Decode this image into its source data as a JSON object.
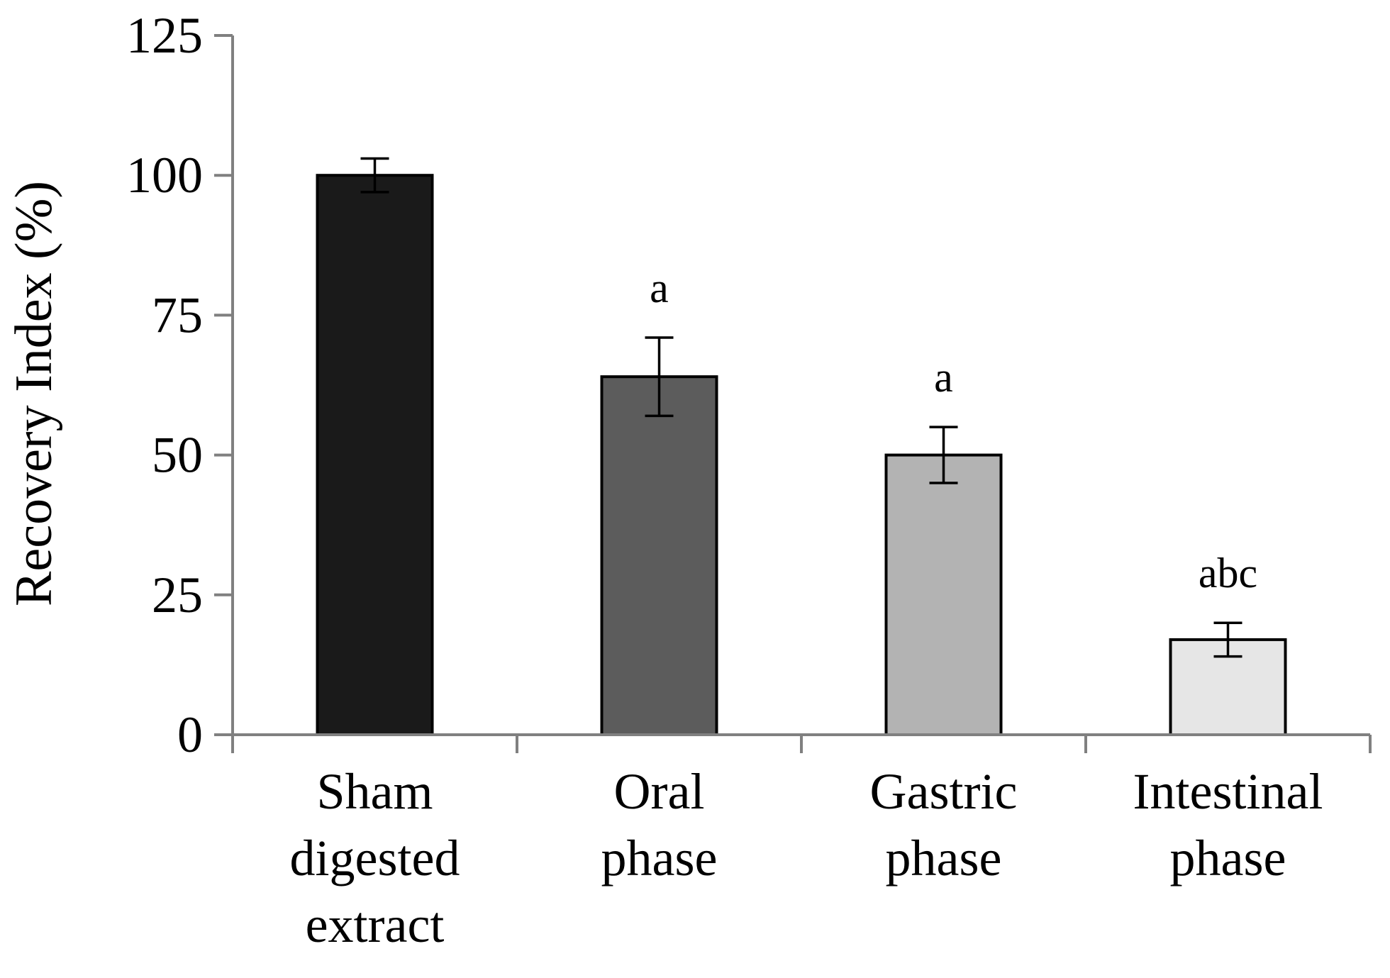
{
  "chart_data": {
    "type": "bar",
    "title": "",
    "xlabel": "",
    "ylabel": "Recovery Index (%)",
    "ylim": [
      0,
      125
    ],
    "yticks": [
      0,
      25,
      50,
      75,
      100,
      125
    ],
    "grid": false,
    "legend": "none",
    "categories": [
      [
        "Sham",
        "digested",
        "extract"
      ],
      [
        "Oral",
        "phase"
      ],
      [
        "Gastric",
        "phase"
      ],
      [
        "Intestinal",
        "phase"
      ]
    ],
    "values": [
      100,
      64,
      50,
      17
    ],
    "errors": [
      3,
      7,
      5,
      3
    ],
    "annotations": [
      "",
      "a",
      "a",
      "abc"
    ],
    "colors": [
      "#1a1a1a",
      "#5c5c5c",
      "#b3b3b3",
      "#e6e6e6"
    ]
  }
}
